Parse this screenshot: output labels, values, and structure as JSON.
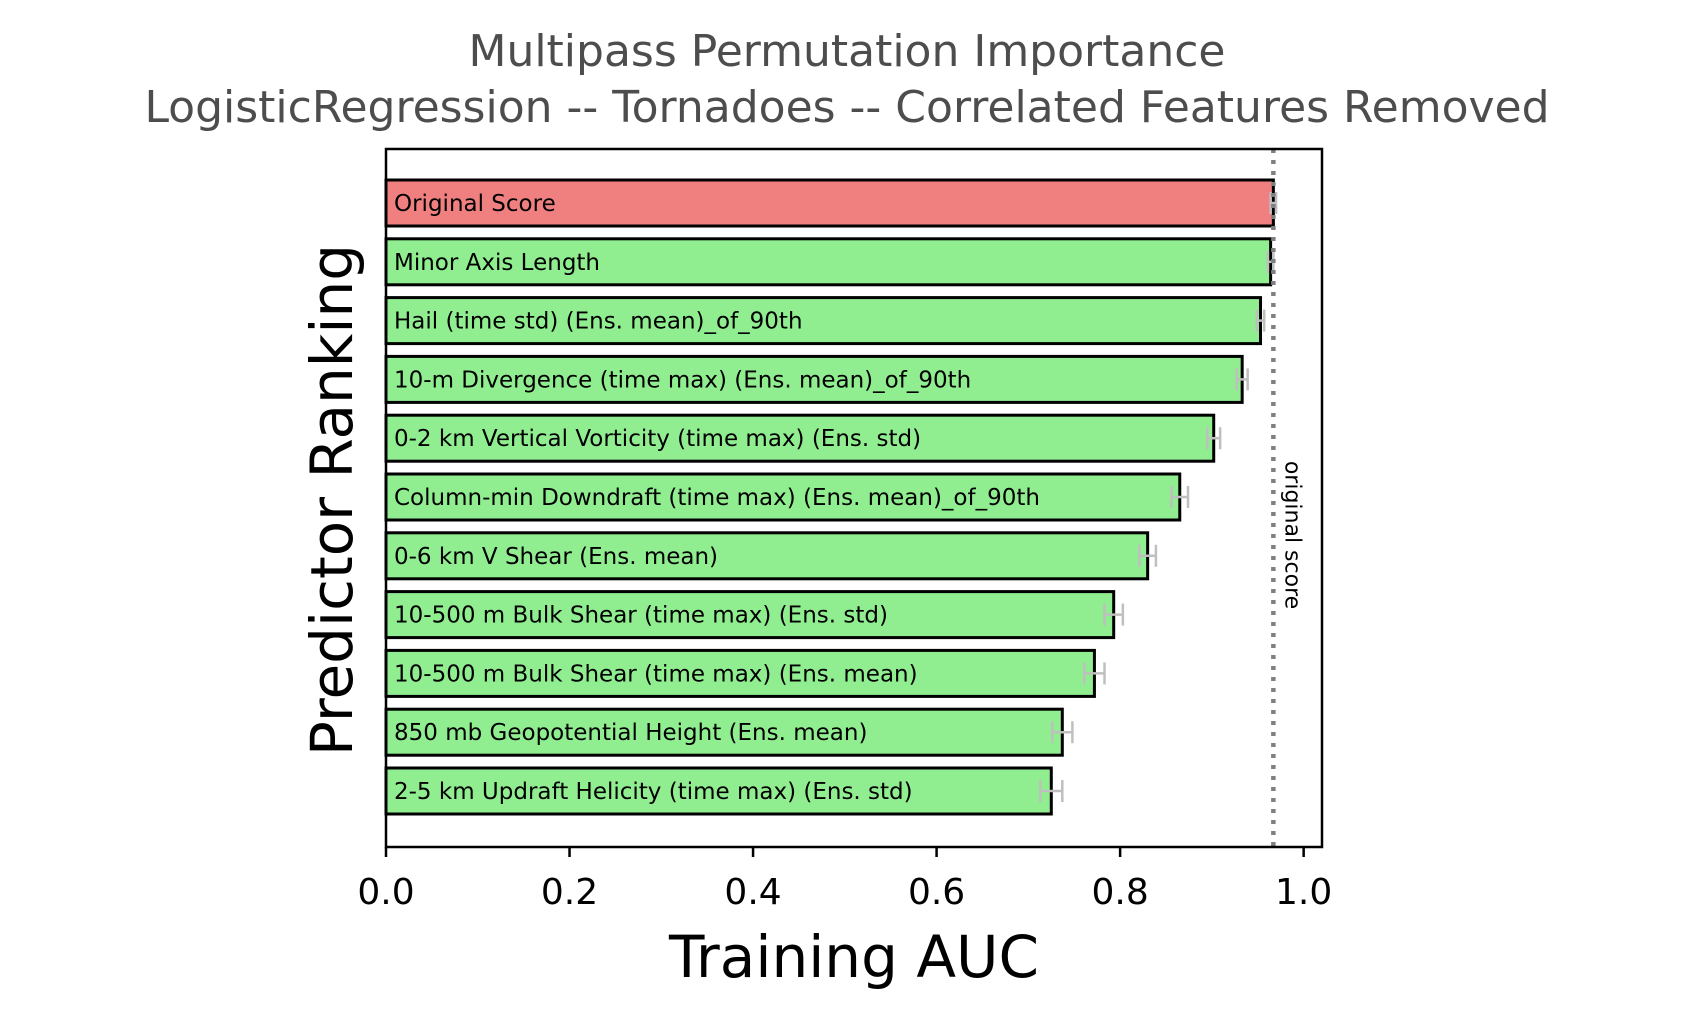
{
  "chart_data": {
    "type": "bar",
    "orientation": "horizontal",
    "title": "Multipass Permutation Importance",
    "subtitle": "LogisticRegression -- Tornadoes -- Correlated Features Removed",
    "xlabel": "Training AUC",
    "ylabel": "Predictor Ranking",
    "xlim": [
      0.0,
      1.02
    ],
    "xticks": [
      "0.0",
      "0.2",
      "0.4",
      "0.6",
      "0.8",
      "1.0"
    ],
    "grid": false,
    "reference_line": {
      "value": 0.967,
      "label": "original score",
      "style": "dotted",
      "color": "#808080"
    },
    "bars": [
      {
        "label": "Original Score",
        "value": 0.967,
        "err": 0.003,
        "color": "#f08080"
      },
      {
        "label": "Minor Axis Length",
        "value": 0.964,
        "err": 0.003,
        "color": "#90ee90"
      },
      {
        "label": "Hail (time std) (Ens. mean)_of_90th",
        "value": 0.953,
        "err": 0.004,
        "color": "#90ee90"
      },
      {
        "label": "10-m Divergence (time max) (Ens. mean)_of_90th",
        "value": 0.933,
        "err": 0.006,
        "color": "#90ee90"
      },
      {
        "label": "0-2 km Vertical Vorticity (time max) (Ens. std)",
        "value": 0.902,
        "err": 0.007,
        "color": "#90ee90"
      },
      {
        "label": "Column-min Downdraft (time max) (Ens. mean)_of_90th",
        "value": 0.865,
        "err": 0.009,
        "color": "#90ee90"
      },
      {
        "label": "0-6 km V Shear (Ens. mean)",
        "value": 0.83,
        "err": 0.009,
        "color": "#90ee90"
      },
      {
        "label": "10-500 m Bulk Shear (time max) (Ens. std)",
        "value": 0.793,
        "err": 0.01,
        "color": "#90ee90"
      },
      {
        "label": "10-500 m Bulk Shear (time max) (Ens. mean)",
        "value": 0.772,
        "err": 0.011,
        "color": "#90ee90"
      },
      {
        "label": "850 mb Geopotential Height (Ens. mean)",
        "value": 0.737,
        "err": 0.011,
        "color": "#90ee90"
      },
      {
        "label": "2-5 km Updraft Helicity (time max) (Ens. std)",
        "value": 0.725,
        "err": 0.012,
        "color": "#90ee90"
      }
    ],
    "bar_edge_color": "#000000",
    "errorbar_color": "#bfbfbf"
  }
}
